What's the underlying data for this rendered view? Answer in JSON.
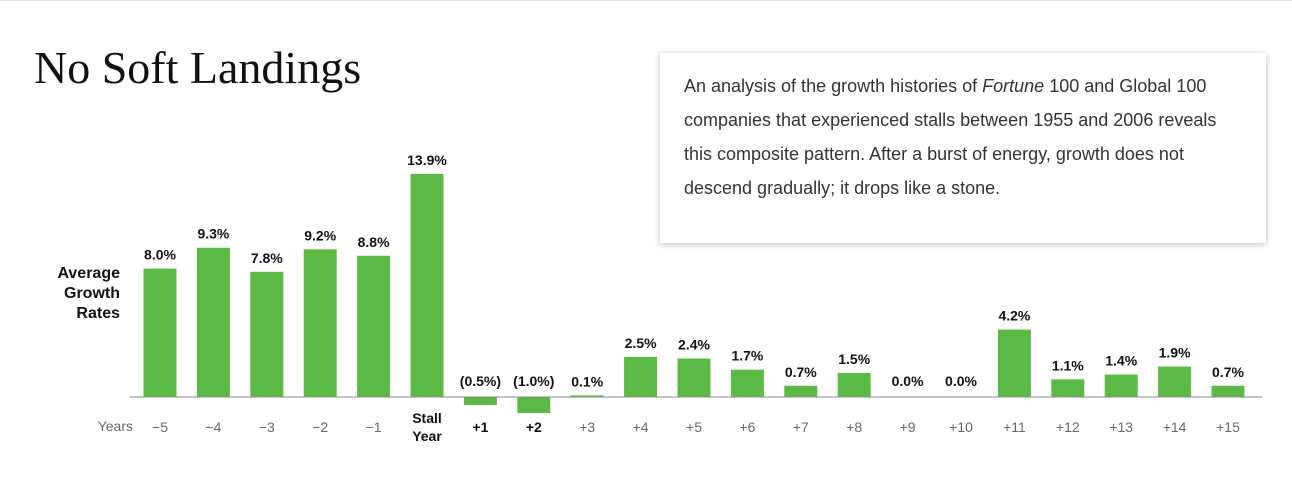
{
  "chart_data": {
    "type": "bar",
    "title": "No Soft Landings",
    "description": [
      "An analysis of the growth histories of ",
      "Fortune",
      " 100 and Global 100 companies that experienced stalls between 1955 and 2006 reveals this composite pattern. After a burst of energy, growth does not descend gradually; it drops like a stone."
    ],
    "y_label": "Average Growth Rates",
    "x_label": "Years",
    "categories": [
      "−5",
      "−4",
      "−3",
      "−2",
      "−1",
      "Stall Year",
      "+1",
      "+2",
      "+3",
      "+4",
      "+5",
      "+6",
      "+7",
      "+8",
      "+9",
      "+10",
      "+11",
      "+12",
      "+13",
      "+14",
      "+15"
    ],
    "values": [
      8.0,
      9.3,
      7.8,
      9.2,
      8.8,
      13.9,
      -0.5,
      -1.0,
      0.1,
      2.5,
      2.4,
      1.7,
      0.7,
      1.5,
      0.0,
      0.0,
      4.2,
      1.1,
      1.4,
      1.9,
      0.7
    ],
    "value_labels": [
      "8.0%",
      "9.3%",
      "7.8%",
      "9.2%",
      "8.8%",
      "13.9%",
      "(0.5%)",
      "(1.0%)",
      "0.1%",
      "2.5%",
      "2.4%",
      "1.7%",
      "0.7%",
      "1.5%",
      "0.0%",
      "0.0%",
      "4.2%",
      "1.1%",
      "1.4%",
      "1.9%",
      "0.7%"
    ],
    "color": "#5cb946"
  }
}
